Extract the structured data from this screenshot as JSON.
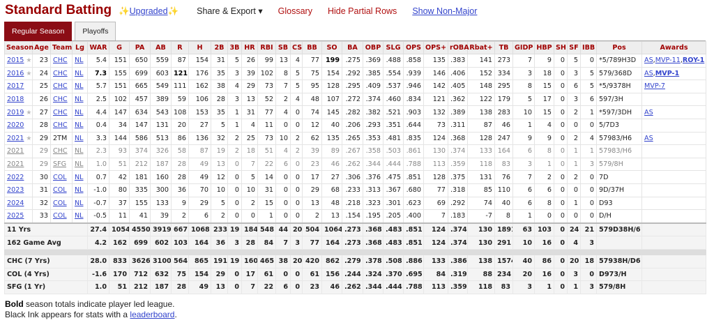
{
  "header": {
    "title": "Standard Batting",
    "upgraded": "Upgraded",
    "share_export": "Share & Export ▾",
    "glossary": "Glossary",
    "hide_partial": "Hide Partial Rows",
    "show_nonmajor": "Show Non-Major"
  },
  "tabs": [
    {
      "label": "Regular Season",
      "active": true
    },
    {
      "label": "Playoffs",
      "active": false
    }
  ],
  "colors": {
    "accent": "#8b0d15",
    "header_text": "#a00000",
    "link": "#3344cc"
  },
  "columns": [
    "Season",
    "Age",
    "Team",
    "Lg",
    "WAR",
    "G",
    "PA",
    "AB",
    "R",
    "H",
    "2B",
    "3B",
    "HR",
    "RBI",
    "SB",
    "CS",
    "BB",
    "SO",
    "BA",
    "OBP",
    "SLG",
    "OPS",
    "OPS+",
    "rOBA",
    "Rbat+",
    "TB",
    "GIDP",
    "HBP",
    "SH",
    "SF",
    "IBB",
    "Pos",
    "Awards"
  ],
  "rows": [
    {
      "allstar": true,
      "bold": [
        17
      ],
      "cells": [
        "2015",
        "23",
        "CHC",
        "NL",
        "5.4",
        "151",
        "650",
        "559",
        "87",
        "154",
        "31",
        "5",
        "26",
        "99",
        "13",
        "4",
        "77",
        "199",
        ".275",
        ".369",
        ".488",
        ".858",
        "135",
        ".383",
        "141",
        "273",
        "7",
        "9",
        "0",
        "5",
        "0",
        "*5/789H3D"
      ],
      "awards": [
        {
          "t": "AS"
        },
        {
          "t": "MVP-11"
        },
        {
          "t": "ROY-1",
          "b": true
        }
      ]
    },
    {
      "allstar": true,
      "bold": [
        4,
        8
      ],
      "cells": [
        "2016",
        "24",
        "CHC",
        "NL",
        "7.3",
        "155",
        "699",
        "603",
        "121",
        "176",
        "35",
        "3",
        "39",
        "102",
        "8",
        "5",
        "75",
        "154",
        ".292",
        ".385",
        ".554",
        ".939",
        "146",
        ".406",
        "152",
        "334",
        "3",
        "18",
        "0",
        "3",
        "5",
        "579/368D"
      ],
      "awards": [
        {
          "t": "AS"
        },
        {
          "t": "MVP-1",
          "b": true
        }
      ]
    },
    {
      "cells": [
        "2017",
        "25",
        "CHC",
        "NL",
        "5.7",
        "151",
        "665",
        "549",
        "111",
        "162",
        "38",
        "4",
        "29",
        "73",
        "7",
        "5",
        "95",
        "128",
        ".295",
        ".409",
        ".537",
        ".946",
        "142",
        ".405",
        "148",
        "295",
        "8",
        "15",
        "0",
        "6",
        "5",
        "*5/9378H"
      ],
      "awards": [
        {
          "t": "MVP-7"
        }
      ]
    },
    {
      "cells": [
        "2018",
        "26",
        "CHC",
        "NL",
        "2.5",
        "102",
        "457",
        "389",
        "59",
        "106",
        "28",
        "3",
        "13",
        "52",
        "2",
        "4",
        "48",
        "107",
        ".272",
        ".374",
        ".460",
        ".834",
        "121",
        ".362",
        "122",
        "179",
        "5",
        "17",
        "0",
        "3",
        "6",
        "597/3H"
      ],
      "awards": []
    },
    {
      "allstar": true,
      "cells": [
        "2019",
        "27",
        "CHC",
        "NL",
        "4.4",
        "147",
        "634",
        "543",
        "108",
        "153",
        "35",
        "1",
        "31",
        "77",
        "4",
        "0",
        "74",
        "145",
        ".282",
        ".382",
        ".521",
        ".903",
        "132",
        ".389",
        "138",
        "283",
        "10",
        "15",
        "0",
        "2",
        "1",
        "*597/3DH"
      ],
      "awards": [
        {
          "t": "AS"
        }
      ]
    },
    {
      "cells": [
        "2020",
        "28",
        "CHC",
        "NL",
        "0.4",
        "34",
        "147",
        "131",
        "20",
        "27",
        "5",
        "1",
        "4",
        "11",
        "0",
        "0",
        "12",
        "40",
        ".206",
        ".293",
        ".351",
        ".644",
        "73",
        ".311",
        "87",
        "46",
        "1",
        "4",
        "0",
        "0",
        "0",
        "5/7D3"
      ],
      "awards": []
    },
    {
      "allstar": true,
      "noteamlink": true,
      "cells": [
        "2021",
        "29",
        "2TM",
        "NL",
        "3.3",
        "144",
        "586",
        "513",
        "86",
        "136",
        "32",
        "2",
        "25",
        "73",
        "10",
        "2",
        "62",
        "135",
        ".265",
        ".353",
        ".481",
        ".835",
        "124",
        ".368",
        "128",
        "247",
        "9",
        "9",
        "0",
        "2",
        "4",
        "57983/H6"
      ],
      "awards": [
        {
          "t": "AS"
        }
      ]
    },
    {
      "partial": true,
      "cells": [
        "2021",
        "29",
        "CHC",
        "NL",
        "2.3",
        "93",
        "374",
        "326",
        "58",
        "87",
        "19",
        "2",
        "18",
        "51",
        "4",
        "2",
        "39",
        "89",
        ".267",
        ".358",
        ".503",
        ".861",
        "130",
        ".374",
        "133",
        "164",
        "6",
        "8",
        "0",
        "1",
        "1",
        "57983/H6"
      ],
      "awards": []
    },
    {
      "partial": true,
      "cells": [
        "2021",
        "29",
        "SFG",
        "NL",
        "1.0",
        "51",
        "212",
        "187",
        "28",
        "49",
        "13",
        "0",
        "7",
        "22",
        "6",
        "0",
        "23",
        "46",
        ".262",
        ".344",
        ".444",
        ".788",
        "113",
        ".359",
        "118",
        "83",
        "3",
        "1",
        "0",
        "1",
        "3",
        "579/8H"
      ],
      "awards": []
    },
    {
      "cells": [
        "2022",
        "30",
        "COL",
        "NL",
        "0.7",
        "42",
        "181",
        "160",
        "28",
        "49",
        "12",
        "0",
        "5",
        "14",
        "0",
        "0",
        "17",
        "27",
        ".306",
        ".376",
        ".475",
        ".851",
        "128",
        ".375",
        "131",
        "76",
        "7",
        "2",
        "0",
        "2",
        "0",
        "7D"
      ],
      "awards": []
    },
    {
      "cells": [
        "2023",
        "31",
        "COL",
        "NL",
        "-1.0",
        "80",
        "335",
        "300",
        "36",
        "70",
        "10",
        "0",
        "10",
        "31",
        "0",
        "0",
        "29",
        "68",
        ".233",
        ".313",
        ".367",
        ".680",
        "77",
        ".318",
        "85",
        "110",
        "6",
        "6",
        "0",
        "0",
        "0",
        "9D/37H"
      ],
      "awards": []
    },
    {
      "cells": [
        "2024",
        "32",
        "COL",
        "NL",
        "-0.7",
        "37",
        "155",
        "133",
        "9",
        "29",
        "5",
        "0",
        "2",
        "15",
        "0",
        "0",
        "13",
        "48",
        ".218",
        ".323",
        ".301",
        ".623",
        "69",
        ".292",
        "74",
        "40",
        "6",
        "8",
        "0",
        "1",
        "0",
        "D93"
      ],
      "awards": []
    },
    {
      "cells": [
        "2025",
        "33",
        "COL",
        "NL",
        "-0.5",
        "11",
        "41",
        "39",
        "2",
        "6",
        "2",
        "0",
        "0",
        "1",
        "0",
        "0",
        "2",
        "13",
        ".154",
        ".195",
        ".205",
        ".400",
        "7",
        ".183",
        "-7",
        "8",
        "1",
        "0",
        "0",
        "0",
        "0",
        "D/H"
      ],
      "awards": []
    }
  ],
  "totals": [
    {
      "label": "11 Yrs",
      "cells": [
        "27.4",
        "1054",
        "4550",
        "3919",
        "667",
        "1068",
        "233",
        "19",
        "184",
        "548",
        "44",
        "20",
        "504",
        "1064",
        ".273",
        ".368",
        ".483",
        ".851",
        "124",
        ".374",
        "130",
        "1891",
        "63",
        "103",
        "0",
        "24",
        "21",
        "579D38H/6"
      ]
    },
    {
      "label": "162 Game Avg",
      "cells": [
        "4.2",
        "162",
        "699",
        "602",
        "103",
        "164",
        "36",
        "3",
        "28",
        "84",
        "7",
        "3",
        "77",
        "164",
        ".273",
        ".368",
        ".483",
        ".851",
        "124",
        ".374",
        "130",
        "291",
        "10",
        "16",
        "0",
        "4",
        "3",
        ""
      ]
    },
    {
      "gap": true
    },
    {
      "label": "CHC (7 Yrs)",
      "cells": [
        "28.0",
        "833",
        "3626",
        "3100",
        "564",
        "865",
        "191",
        "19",
        "160",
        "465",
        "38",
        "20",
        "420",
        "862",
        ".279",
        ".378",
        ".508",
        ".886",
        "133",
        ".386",
        "138",
        "1574",
        "40",
        "86",
        "0",
        "20",
        "18",
        "57938H/D6"
      ]
    },
    {
      "label": "COL (4 Yrs)",
      "cells": [
        "-1.6",
        "170",
        "712",
        "632",
        "75",
        "154",
        "29",
        "0",
        "17",
        "61",
        "0",
        "0",
        "61",
        "156",
        ".244",
        ".324",
        ".370",
        ".695",
        "84",
        ".319",
        "88",
        "234",
        "20",
        "16",
        "0",
        "3",
        "0",
        "D973/H"
      ]
    },
    {
      "label": "SFG (1 Yr)",
      "cells": [
        "1.0",
        "51",
        "212",
        "187",
        "28",
        "49",
        "13",
        "0",
        "7",
        "22",
        "6",
        "0",
        "23",
        "46",
        ".262",
        ".344",
        ".444",
        ".788",
        "113",
        ".359",
        "118",
        "83",
        "3",
        "1",
        "0",
        "1",
        "3",
        "579/8H"
      ]
    }
  ],
  "notes": {
    "bold_word": "Bold",
    "line1_rest": " season totals indicate player led league.",
    "line2_prefix": "Black Ink appears for stats with a ",
    "leaderboard": "leaderboard",
    "line2_suffix": "."
  }
}
